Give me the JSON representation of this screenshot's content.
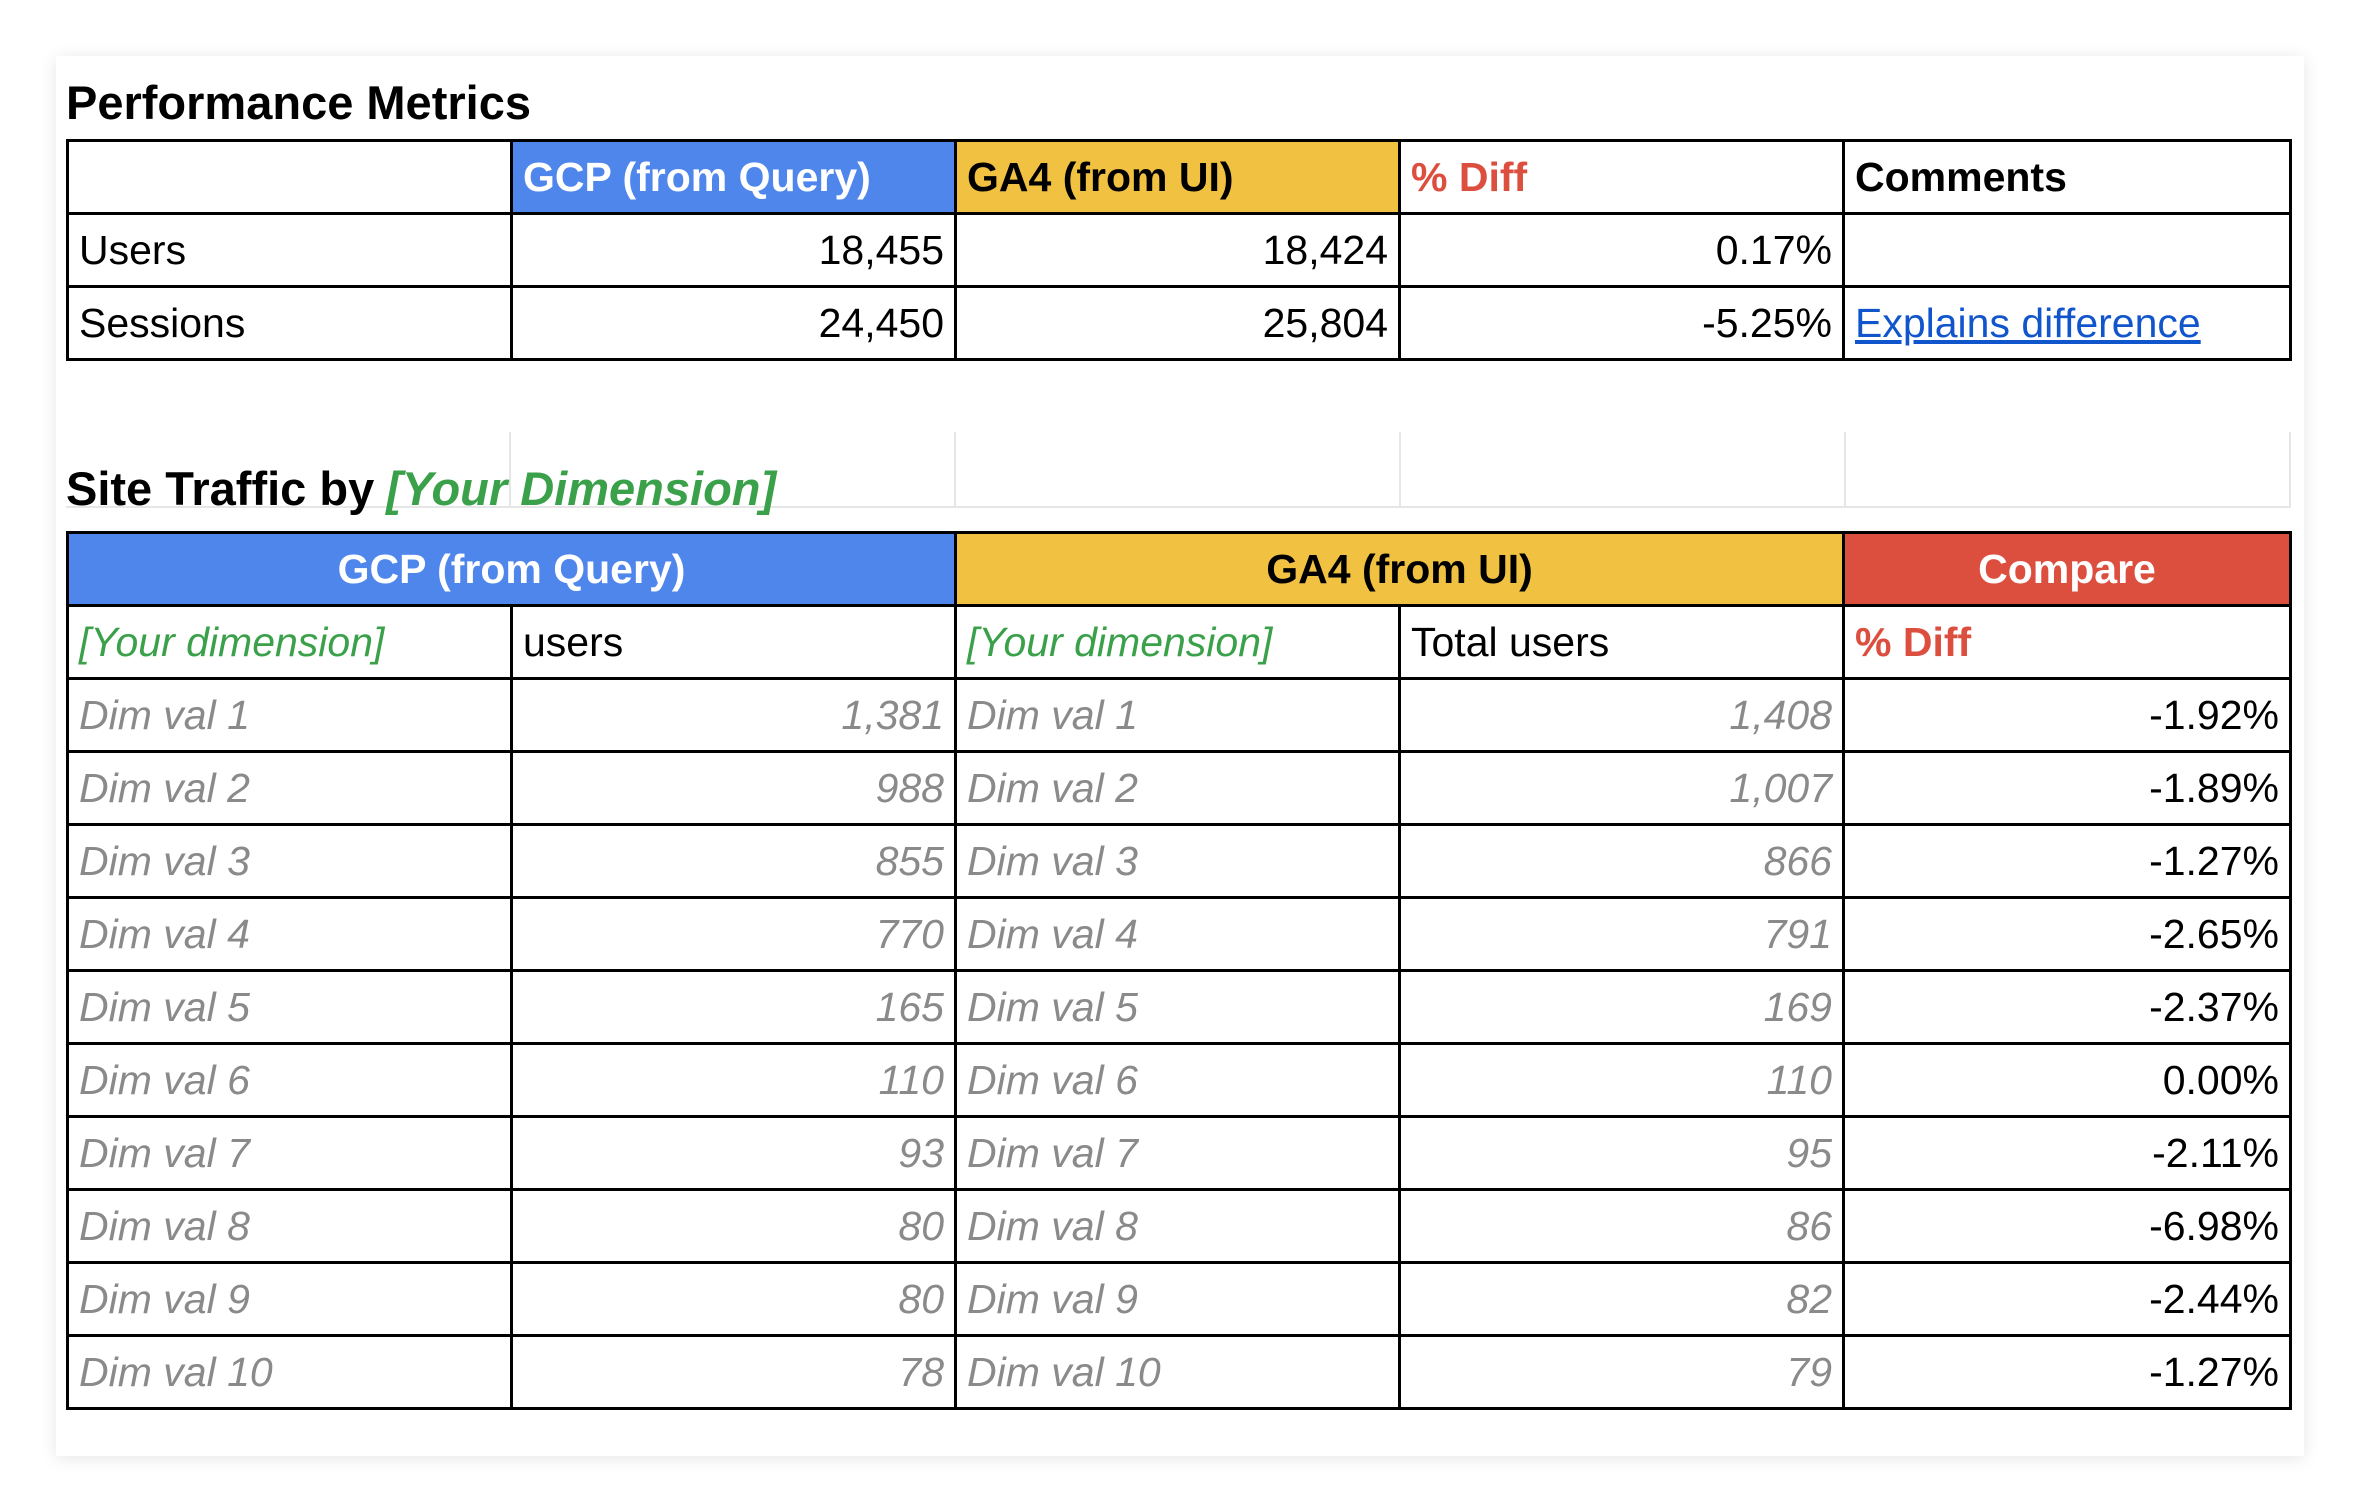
{
  "performance": {
    "title": "Performance Metrics",
    "headers": [
      "",
      "GCP (from Query)",
      "GA4 (from UI)",
      "% Diff",
      "Comments"
    ],
    "rows": [
      {
        "metric": "Users",
        "gcp": "18,455",
        "ga4": "18,424",
        "diff": "0.17%",
        "comment": ""
      },
      {
        "metric": "Sessions",
        "gcp": "24,450",
        "ga4": "25,804",
        "diff": "-5.25%",
        "comment": "Explains difference"
      }
    ]
  },
  "traffic": {
    "title": "Site Traffic by",
    "dimension_title": "[Your Dimension]",
    "group_headers": [
      "GCP (from Query)",
      "GA4 (from UI)",
      "Compare"
    ],
    "sub_headers": [
      "[Your dimension]",
      "users",
      "[Your dimension]",
      "Total users",
      "% Diff"
    ],
    "rows": [
      {
        "gcp_dim": "Dim val 1",
        "gcp_users": "1,381",
        "ga4_dim": "Dim val 1",
        "ga4_users": "1,408",
        "diff": "-1.92%"
      },
      {
        "gcp_dim": "Dim val 2",
        "gcp_users": "988",
        "ga4_dim": "Dim val 2",
        "ga4_users": "1,007",
        "diff": "-1.89%"
      },
      {
        "gcp_dim": "Dim val 3",
        "gcp_users": "855",
        "ga4_dim": "Dim val 3",
        "ga4_users": "866",
        "diff": "-1.27%"
      },
      {
        "gcp_dim": "Dim val 4",
        "gcp_users": "770",
        "ga4_dim": "Dim val 4",
        "ga4_users": "791",
        "diff": "-2.65%"
      },
      {
        "gcp_dim": "Dim val 5",
        "gcp_users": "165",
        "ga4_dim": "Dim val 5",
        "ga4_users": "169",
        "diff": "-2.37%"
      },
      {
        "gcp_dim": "Dim val 6",
        "gcp_users": "110",
        "ga4_dim": "Dim val 6",
        "ga4_users": "110",
        "diff": "0.00%"
      },
      {
        "gcp_dim": "Dim val 7",
        "gcp_users": "93",
        "ga4_dim": "Dim val 7",
        "ga4_users": "95",
        "diff": "-2.11%"
      },
      {
        "gcp_dim": "Dim val 8",
        "gcp_users": "80",
        "ga4_dim": "Dim val 8",
        "ga4_users": "86",
        "diff": "-6.98%"
      },
      {
        "gcp_dim": "Dim val 9",
        "gcp_users": "80",
        "ga4_dim": "Dim val 9",
        "ga4_users": "82",
        "diff": "-2.44%"
      },
      {
        "gcp_dim": "Dim val 10",
        "gcp_users": "78",
        "ga4_dim": "Dim val 10",
        "ga4_users": "79",
        "diff": "-1.27%"
      }
    ]
  },
  "colors": {
    "gcp_blue": "#4f86ec",
    "ga4_yellow": "#f1c142",
    "compare_red": "#dc4f3f",
    "dimension_green": "#3aa14a",
    "link_blue": "#1155cc"
  }
}
